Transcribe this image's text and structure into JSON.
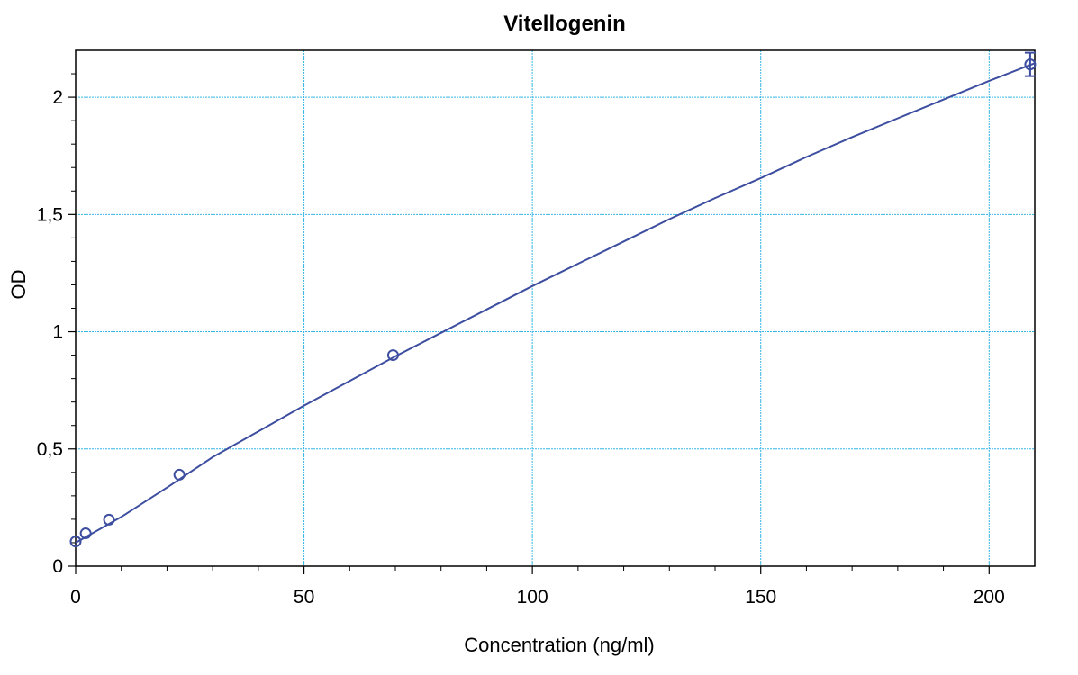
{
  "chart_data": {
    "type": "scatter",
    "title": "Vitellogenin",
    "xlabel": "Concentration (ng/ml)",
    "ylabel": "OD",
    "xlim": [
      0,
      210
    ],
    "ylim": [
      0,
      2.2
    ],
    "x_ticks": [
      {
        "value": 0,
        "label": "0"
      },
      {
        "value": 50,
        "label": "50"
      },
      {
        "value": 100,
        "label": "100"
      },
      {
        "value": 150,
        "label": "150"
      },
      {
        "value": 200,
        "label": "200"
      }
    ],
    "y_ticks": [
      {
        "value": 0,
        "label": "0"
      },
      {
        "value": 0.5,
        "label": "0,5"
      },
      {
        "value": 1,
        "label": "1"
      },
      {
        "value": 1.5,
        "label": "1,5"
      },
      {
        "value": 2,
        "label": "2"
      }
    ],
    "grid": true,
    "series": [
      {
        "points": [
          {
            "x": 0,
            "y": 0.105
          },
          {
            "x": 2.2,
            "y": 0.14
          },
          {
            "x": 7.3,
            "y": 0.198
          },
          {
            "x": 22.7,
            "y": 0.39
          },
          {
            "x": 69.5,
            "y": 0.9
          },
          {
            "x": 209,
            "y": 2.14,
            "err": 0.05
          }
        ],
        "fit_curve": [
          [
            0,
            0.1
          ],
          [
            10,
            0.21
          ],
          [
            20,
            0.335
          ],
          [
            30,
            0.465
          ],
          [
            40,
            0.575
          ],
          [
            50,
            0.685
          ],
          [
            60,
            0.79
          ],
          [
            70,
            0.895
          ],
          [
            80,
            0.995
          ],
          [
            90,
            1.095
          ],
          [
            100,
            1.195
          ],
          [
            110,
            1.29
          ],
          [
            120,
            1.385
          ],
          [
            130,
            1.48
          ],
          [
            140,
            1.57
          ],
          [
            150,
            1.655
          ],
          [
            160,
            1.745
          ],
          [
            170,
            1.83
          ],
          [
            180,
            1.91
          ],
          [
            190,
            1.99
          ],
          [
            200,
            2.07
          ],
          [
            210,
            2.145
          ]
        ]
      }
    ],
    "colors": {
      "series": "#3d4ea0",
      "grid": "#35b5e5",
      "axis": "#000000"
    }
  }
}
